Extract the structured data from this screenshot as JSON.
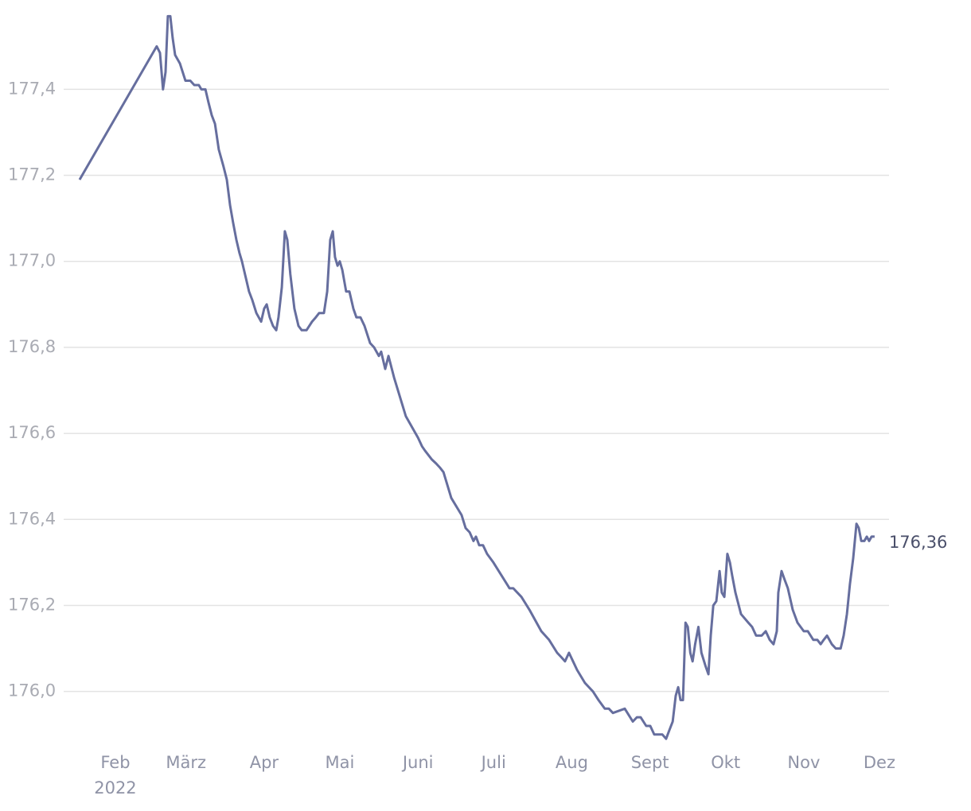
{
  "chart_data": {
    "type": "line",
    "color": "#666e9e",
    "grid": true,
    "xlim": [
      11.5,
      338.8
    ],
    "ylim": [
      175.87,
      177.58
    ],
    "yticks": [
      {
        "value": 176.0,
        "label": "176,0"
      },
      {
        "value": 176.2,
        "label": "176,2"
      },
      {
        "value": 176.4,
        "label": "176,4"
      },
      {
        "value": 176.6,
        "label": "176,6"
      },
      {
        "value": 176.8,
        "label": "176,8"
      },
      {
        "value": 177.0,
        "label": "177,0"
      },
      {
        "value": 177.2,
        "label": "177,2"
      },
      {
        "value": 177.4,
        "label": "177,4"
      }
    ],
    "xticks": [
      {
        "value": 32,
        "label": "Feb"
      },
      {
        "value": 60,
        "label": "März"
      },
      {
        "value": 91,
        "label": "Apr"
      },
      {
        "value": 121,
        "label": "Mai"
      },
      {
        "value": 152,
        "label": "Juni"
      },
      {
        "value": 182,
        "label": "Juli"
      },
      {
        "value": 213,
        "label": "Aug"
      },
      {
        "value": 244,
        "label": "Sept"
      },
      {
        "value": 274,
        "label": "Okt"
      },
      {
        "value": 305,
        "label": "Nov"
      },
      {
        "value": 335,
        "label": "Dez"
      }
    ],
    "year_label": "2022",
    "last_value_label": "176,36",
    "x": [
      17.8,
      48.4,
      49.7,
      50.9,
      51.9,
      52.8,
      53.8,
      54.7,
      55.7,
      57.6,
      59.8,
      61.7,
      63.3,
      65.1,
      66.1,
      67.7,
      68.9,
      70.2,
      71.5,
      73.0,
      74.9,
      76.2,
      77.5,
      78.7,
      80.0,
      81.2,
      82.2,
      83.8,
      85.0,
      86.3,
      87.9,
      89.8,
      91.0,
      92.0,
      93.2,
      94.5,
      95.8,
      96.7,
      98.0,
      99.2,
      100.2,
      101.4,
      103.0,
      104.6,
      105.9,
      107.8,
      110.0,
      111.5,
      112.8,
      114.7,
      116.0,
      117.2,
      118.2,
      119.1,
      120.1,
      121.0,
      122.0,
      123.5,
      124.8,
      126.4,
      127.6,
      129.2,
      130.8,
      133.0,
      134.6,
      136.5,
      137.4,
      139.0,
      140.3,
      142.5,
      147.2,
      152.0,
      153.6,
      154.8,
      157.4,
      159.2,
      160.8,
      162.1,
      165.2,
      169.3,
      170.9,
      172.5,
      174.0,
      175.0,
      176.3,
      177.8,
      179.4,
      181.9,
      185.1,
      188.3,
      189.8,
      191.4,
      193.0,
      196.2,
      200.9,
      204.0,
      207.2,
      208.8,
      210.3,
      211.9,
      213.5,
      215.1,
      218.2,
      221.4,
      223.6,
      226.1,
      227.7,
      229.3,
      234.0,
      237.2,
      238.8,
      240.3,
      242.5,
      244.1,
      245.7,
      248.9,
      250.4,
      251.7,
      253.0,
      254.2,
      255.2,
      256.1,
      257.1,
      258.1,
      259.0,
      260.0,
      260.9,
      261.9,
      263.2,
      264.4,
      266.0,
      267.2,
      268.1,
      269.1,
      270.3,
      271.6,
      272.5,
      273.5,
      274.7,
      275.7,
      276.6,
      277.9,
      280.1,
      283.0,
      284.5,
      286.1,
      288.3,
      289.9,
      291.5,
      293.0,
      294.3,
      294.9,
      296.2,
      297.4,
      298.7,
      300.6,
      302.5,
      305.0,
      306.6,
      308.8,
      310.4,
      311.7,
      312.9,
      314.2,
      316.1,
      317.7,
      319.6,
      320.8,
      322.1,
      323.3,
      324.6,
      325.9,
      326.8,
      327.8,
      329.0,
      330.0,
      330.9,
      331.9,
      333.1
    ],
    "values": [
      177.19,
      177.5,
      177.485,
      177.4,
      177.44,
      177.57,
      177.57,
      177.52,
      177.48,
      177.46,
      177.42,
      177.42,
      177.41,
      177.41,
      177.4,
      177.4,
      177.37,
      177.34,
      177.32,
      177.26,
      177.22,
      177.19,
      177.13,
      177.09,
      177.05,
      177.02,
      177.0,
      176.96,
      176.93,
      176.91,
      176.88,
      176.86,
      176.89,
      176.9,
      176.87,
      176.85,
      176.84,
      176.87,
      176.94,
      177.07,
      177.05,
      176.97,
      176.89,
      176.85,
      176.84,
      176.84,
      176.86,
      176.87,
      176.88,
      176.88,
      176.93,
      177.05,
      177.07,
      177.01,
      176.99,
      177.0,
      176.98,
      176.93,
      176.93,
      176.89,
      176.87,
      176.87,
      176.85,
      176.81,
      176.8,
      176.78,
      176.79,
      176.75,
      176.78,
      176.73,
      176.64,
      176.59,
      176.57,
      176.56,
      176.54,
      176.53,
      176.52,
      176.51,
      176.45,
      176.41,
      176.38,
      176.37,
      176.35,
      176.36,
      176.34,
      176.34,
      176.32,
      176.3,
      176.27,
      176.24,
      176.24,
      176.23,
      176.22,
      176.19,
      176.14,
      176.12,
      176.09,
      176.08,
      176.07,
      176.09,
      176.07,
      176.05,
      176.02,
      176.0,
      175.98,
      175.96,
      175.96,
      175.95,
      175.96,
      175.93,
      175.94,
      175.94,
      175.92,
      175.92,
      175.9,
      175.9,
      175.89,
      175.91,
      175.93,
      175.99,
      176.01,
      175.98,
      175.98,
      176.16,
      176.15,
      176.09,
      176.07,
      176.11,
      176.15,
      176.09,
      176.06,
      176.04,
      176.13,
      176.2,
      176.21,
      176.28,
      176.23,
      176.22,
      176.32,
      176.3,
      176.27,
      176.23,
      176.18,
      176.16,
      176.15,
      176.13,
      176.13,
      176.14,
      176.12,
      176.11,
      176.14,
      176.23,
      176.28,
      176.26,
      176.24,
      176.19,
      176.16,
      176.14,
      176.14,
      176.12,
      176.12,
      176.11,
      176.12,
      176.13,
      176.11,
      176.1,
      176.1,
      176.13,
      176.18,
      176.25,
      176.31,
      176.39,
      176.38,
      176.35,
      176.35,
      176.36,
      176.35,
      176.36,
      176.36
    ]
  }
}
